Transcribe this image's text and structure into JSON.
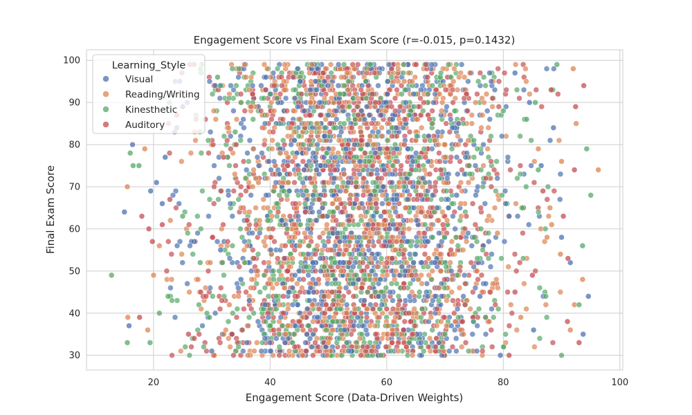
{
  "chart_data": {
    "type": "scatter",
    "title": "Engagement Score vs Final Exam Score (r=-0.015, p=0.1432)",
    "xlabel": "Engagement Score (Data-Driven Weights)",
    "ylabel": "Final Exam Score",
    "xlim": [
      8.5,
      100.5
    ],
    "ylim": [
      26.5,
      102.5
    ],
    "x_ticks": [
      20,
      40,
      60,
      80,
      100
    ],
    "y_ticks": [
      30,
      40,
      50,
      60,
      70,
      80,
      90,
      100
    ],
    "grid": true,
    "legend": {
      "title": "Learning_Style",
      "placement": "top-left"
    },
    "series": [
      {
        "name": "Visual",
        "color": "#4c72b0",
        "points": [
          [
            15.0,
            64
          ],
          [
            15.8,
            37
          ],
          [
            16.4,
            80
          ],
          [
            19.5,
            69
          ],
          [
            20.5,
            71
          ],
          [
            21.5,
            66
          ],
          [
            22.0,
            77
          ],
          [
            24.0,
            84
          ],
          [
            24.5,
            95
          ],
          [
            88.6,
            84
          ],
          [
            90.0,
            58
          ],
          [
            91.5,
            52
          ],
          [
            94.6,
            44
          ],
          [
            93.7,
            35
          ],
          [
            86.5,
            75
          ],
          [
            85.2,
            36
          ],
          [
            84.5,
            90
          ],
          [
            82.0,
            97
          ],
          [
            79.5,
            30
          ],
          [
            30.0,
            31
          ],
          [
            31.5,
            55
          ],
          [
            35.0,
            48
          ],
          [
            42.0,
            62
          ],
          [
            48.0,
            74
          ],
          [
            55.0,
            39
          ],
          [
            61.0,
            86
          ],
          [
            66.0,
            52
          ],
          [
            72.0,
            68
          ],
          [
            76.0,
            44
          ],
          [
            81.0,
            63
          ]
        ]
      },
      {
        "name": "Reading/Writing",
        "color": "#dd8452",
        "points": [
          [
            15.5,
            70
          ],
          [
            15.6,
            39
          ],
          [
            18.5,
            79
          ],
          [
            19.0,
            36
          ],
          [
            20.0,
            49
          ],
          [
            21.0,
            56
          ],
          [
            92.0,
            98
          ],
          [
            92.5,
            85
          ],
          [
            96.3,
            74
          ],
          [
            93.6,
            48
          ],
          [
            92.2,
            42
          ],
          [
            91.5,
            36
          ],
          [
            89.8,
            54
          ],
          [
            88.0,
            65
          ],
          [
            88.3,
            61
          ],
          [
            87.5,
            58
          ],
          [
            86.0,
            79
          ],
          [
            90.0,
            76
          ],
          [
            27.0,
            99
          ],
          [
            33.0,
            42
          ],
          [
            38.0,
            71
          ],
          [
            44.0,
            88
          ],
          [
            50.0,
            33
          ],
          [
            57.0,
            57
          ],
          [
            63.0,
            95
          ],
          [
            69.0,
            46
          ],
          [
            74.0,
            81
          ],
          [
            79.0,
            59
          ],
          [
            83.0,
            39
          ],
          [
            36.0,
            60
          ]
        ]
      },
      {
        "name": "Kinesthetic",
        "color": "#55a868",
        "points": [
          [
            12.8,
            49
          ],
          [
            15.5,
            33
          ],
          [
            16.0,
            78
          ],
          [
            16.5,
            75
          ],
          [
            17.5,
            75
          ],
          [
            19.4,
            33
          ],
          [
            21.0,
            40
          ],
          [
            22.5,
            44
          ],
          [
            89.2,
            99
          ],
          [
            93.0,
            42
          ],
          [
            93.6,
            56
          ],
          [
            94.3,
            79
          ],
          [
            95.0,
            68
          ],
          [
            88.5,
            93
          ],
          [
            86.0,
            74
          ],
          [
            85.5,
            90
          ],
          [
            84.0,
            86
          ],
          [
            90.0,
            30
          ],
          [
            28.0,
            52
          ],
          [
            34.0,
            83
          ],
          [
            40.0,
            37
          ],
          [
            46.0,
            66
          ],
          [
            52.0,
            92
          ],
          [
            58.0,
            45
          ],
          [
            64.0,
            73
          ],
          [
            70.0,
            35
          ],
          [
            75.0,
            58
          ],
          [
            80.0,
            88
          ],
          [
            25.0,
            63
          ],
          [
            31.0,
            96
          ]
        ]
      },
      {
        "name": "Auditory",
        "color": "#c44e52",
        "points": [
          [
            17.6,
            39
          ],
          [
            18.0,
            63
          ],
          [
            19.2,
            60
          ],
          [
            19.8,
            57
          ],
          [
            21.5,
            61
          ],
          [
            22.8,
            67
          ],
          [
            24.0,
            87
          ],
          [
            93.8,
            94
          ],
          [
            92.4,
            89
          ],
          [
            92.2,
            74
          ],
          [
            91.1,
            53
          ],
          [
            90.3,
            63
          ],
          [
            91.0,
            38
          ],
          [
            93.0,
            33
          ],
          [
            88.2,
            93
          ],
          [
            86.8,
            69
          ],
          [
            85.0,
            49
          ],
          [
            81.0,
            30
          ],
          [
            29.0,
            44
          ],
          [
            32.0,
            77
          ],
          [
            37.0,
            92
          ],
          [
            43.0,
            50
          ],
          [
            49.0,
            63
          ],
          [
            54.0,
            84
          ],
          [
            60.0,
            41
          ],
          [
            67.0,
            96
          ],
          [
            71.0,
            55
          ],
          [
            77.0,
            72
          ],
          [
            82.0,
            45
          ],
          [
            26.0,
            35
          ]
        ]
      }
    ]
  }
}
